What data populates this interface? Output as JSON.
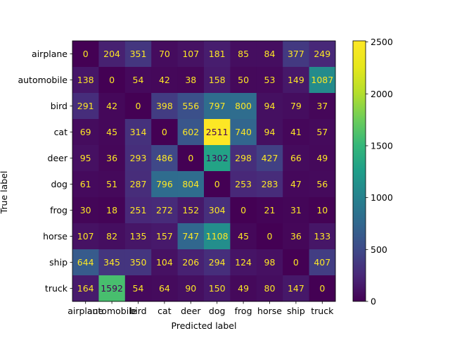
{
  "chart_data": {
    "type": "heatmap",
    "xlabel": "Predicted label",
    "ylabel": "True label",
    "categories": [
      "airplane",
      "automobile",
      "bird",
      "cat",
      "deer",
      "dog",
      "frog",
      "horse",
      "ship",
      "truck"
    ],
    "values": [
      [
        0,
        204,
        351,
        70,
        107,
        181,
        85,
        84,
        377,
        249
      ],
      [
        138,
        0,
        54,
        42,
        38,
        158,
        50,
        53,
        149,
        1087
      ],
      [
        291,
        42,
        0,
        398,
        556,
        797,
        800,
        94,
        79,
        37
      ],
      [
        69,
        45,
        314,
        0,
        602,
        2511,
        740,
        94,
        41,
        57
      ],
      [
        95,
        36,
        293,
        486,
        0,
        1302,
        298,
        427,
        66,
        49
      ],
      [
        61,
        51,
        287,
        796,
        804,
        0,
        253,
        283,
        47,
        56
      ],
      [
        30,
        18,
        251,
        272,
        152,
        304,
        0,
        21,
        31,
        10
      ],
      [
        107,
        82,
        135,
        157,
        747,
        1108,
        45,
        0,
        36,
        133
      ],
      [
        644,
        345,
        350,
        104,
        206,
        294,
        124,
        98,
        0,
        407
      ],
      [
        164,
        1592,
        54,
        64,
        90,
        150,
        49,
        80,
        147,
        0
      ]
    ],
    "colormap": "viridis",
    "vmin": 0,
    "vmax": 2511,
    "colorbar_ticks": [
      "0",
      "500",
      "1000",
      "1500",
      "2000",
      "2500"
    ],
    "colorbar_tick_values": [
      0,
      500,
      1000,
      1500,
      2000,
      2500
    ],
    "grid": false
  }
}
